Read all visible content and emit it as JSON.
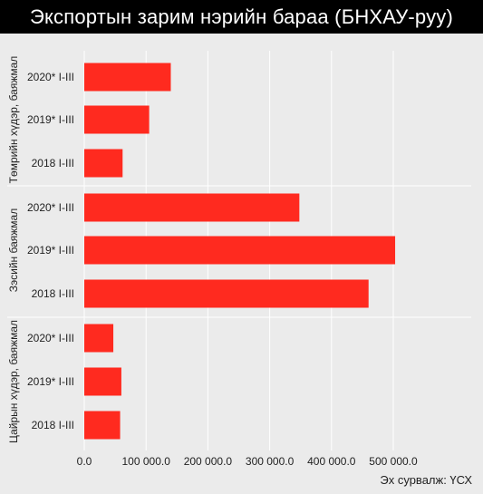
{
  "title": "Экспортын зарим нэрийн бараа (БНХАУ-руу)",
  "source": "Эх сурвалж: ҮСХ",
  "colors": {
    "bar": "#ff2a1f",
    "background": "#ebebeb",
    "header": "#000000",
    "grid": "#ffffff"
  },
  "chart_data": {
    "type": "bar",
    "orientation": "horizontal",
    "title": "Экспортын зарим нэрийн бараа (БНХАУ-руу)",
    "xlim": [
      0,
      540000
    ],
    "x_ticks": [
      0,
      100000,
      200000,
      300000,
      400000,
      500000
    ],
    "x_tick_labels": [
      "0.0",
      "100 000.0",
      "200 000.0",
      "300 000.0",
      "400 000.0",
      "500 000.0"
    ],
    "grid": true,
    "groups": [
      {
        "label": "Төмрийн хүдэр, баяжмал",
        "bars": [
          {
            "category": "2020* I-III",
            "value": 140000
          },
          {
            "category": "2019* I-III",
            "value": 105000
          },
          {
            "category": "2018 I-III",
            "value": 62000
          }
        ]
      },
      {
        "label": "Зэсийн баяжмал",
        "bars": [
          {
            "category": "2020* I-III",
            "value": 348000
          },
          {
            "category": "2019* I-III",
            "value": 503000
          },
          {
            "category": "2018 I-III",
            "value": 460000
          }
        ]
      },
      {
        "label": "Цайрын хүдэр, баяжмал",
        "bars": [
          {
            "category": "2020* I-III",
            "value": 47000
          },
          {
            "category": "2019* I-III",
            "value": 60000
          },
          {
            "category": "2018 I-III",
            "value": 58000
          }
        ]
      }
    ]
  }
}
